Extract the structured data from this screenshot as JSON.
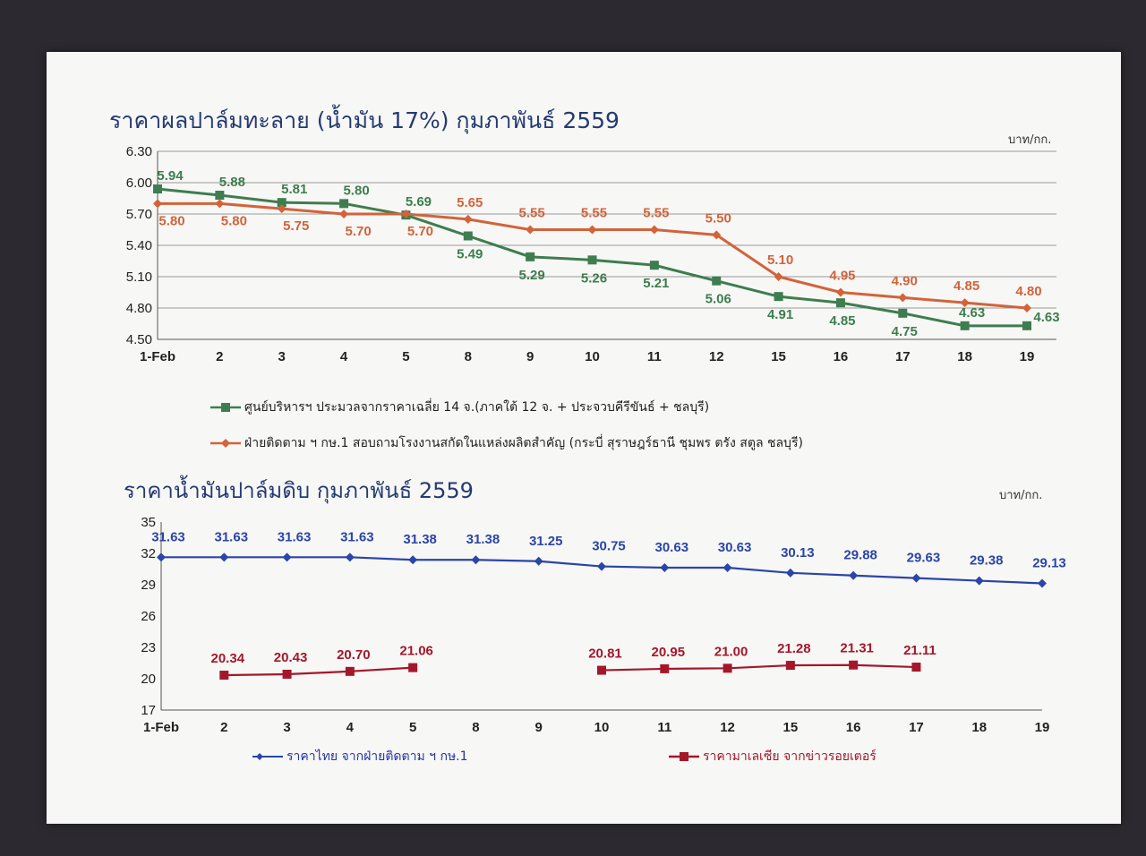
{
  "chart_data": [
    {
      "type": "line",
      "title": "ราคาผลปาล์มทะลาย (น้ำมัน 17%) กุมภาพันธ์ 2559",
      "unit": "บาท/กก.",
      "categories": [
        "1-Feb",
        "2",
        "3",
        "4",
        "5",
        "8",
        "9",
        "10",
        "11",
        "12",
        "15",
        "16",
        "17",
        "18",
        "19"
      ],
      "ylim": [
        4.5,
        6.3
      ],
      "yticks": [
        "4.50",
        "4.80",
        "5.10",
        "5.40",
        "5.70",
        "6.00",
        "6.30"
      ],
      "grid": true,
      "legend_position": "bottom",
      "series": [
        {
          "name": "ศูนย์บริหารฯ ประมวลจากราคาเฉลี่ย 14 จ.(ภาคใต้ 12 จ. + ประจวบคีรีขันธ์ + ชลบุรี)",
          "color": "#3e7d4f",
          "marker": "square",
          "values": [
            5.94,
            5.88,
            5.81,
            5.8,
            5.69,
            5.49,
            5.29,
            5.26,
            5.21,
            5.06,
            4.91,
            4.85,
            4.75,
            4.63,
            4.63
          ],
          "labels": [
            "5.94",
            "5.88",
            "5.81",
            "5.80",
            "5.69",
            "5.49",
            "5.29",
            "5.26",
            "5.21",
            "5.06",
            "4.91",
            "4.85",
            "4.75",
            "4.63",
            "4.63"
          ]
        },
        {
          "name": "ฝ่ายติดตาม ฯ กษ.1 สอบถามโรงงานสกัดในแหล่งผลิตสำคัญ (กระบี่ สุราษฎร์ธานี ชุมพร ตรัง สตูล ชลบุรี)",
          "color": "#d2633b",
          "marker": "diamond",
          "values": [
            5.8,
            5.8,
            5.75,
            5.7,
            5.7,
            5.65,
            5.55,
            5.55,
            5.55,
            5.5,
            5.1,
            4.95,
            4.9,
            4.85,
            4.8
          ],
          "labels": [
            "5.80",
            "5.80",
            "5.75",
            "5.70",
            "5.70",
            "5.65",
            "5.55",
            "5.55",
            "5.55",
            "5.50",
            "5.10",
            "4.95",
            "4.90",
            "4.85",
            "4.80"
          ]
        }
      ]
    },
    {
      "type": "line",
      "title": "ราคาน้ำมันปาล์มดิบ  กุมภาพันธ์ 2559",
      "unit": "บาท/กก.",
      "categories": [
        "1-Feb",
        "2",
        "3",
        "4",
        "5",
        "8",
        "9",
        "10",
        "11",
        "12",
        "15",
        "16",
        "17",
        "18",
        "19"
      ],
      "ylim": [
        17,
        35
      ],
      "yticks": [
        "17",
        "20",
        "23",
        "26",
        "29",
        "32",
        "35"
      ],
      "grid": false,
      "legend_position": "bottom",
      "series": [
        {
          "name": "ราคาไทย  จากฝ่ายติดตาม ฯ กษ.1",
          "color": "#2b45a8",
          "marker": "diamond",
          "values": [
            31.63,
            31.63,
            31.63,
            31.63,
            31.38,
            31.38,
            31.25,
            30.75,
            30.63,
            30.63,
            30.13,
            29.88,
            29.63,
            29.38,
            29.13
          ],
          "labels": [
            "31.63",
            "31.63",
            "31.63",
            "31.63",
            "31.38",
            "31.38",
            "31.25",
            "30.75",
            "30.63",
            "30.63",
            "30.13",
            "29.88",
            "29.63",
            "29.38",
            "29.13"
          ]
        },
        {
          "name": "ราคามาเลเซีย จากข่าวรอยเตอร์",
          "color": "#a4172b",
          "marker": "square",
          "values": [
            null,
            20.34,
            20.43,
            20.7,
            21.06,
            null,
            null,
            20.81,
            20.95,
            21.0,
            21.28,
            21.31,
            21.11,
            null,
            null
          ],
          "labels": [
            null,
            "20.34",
            "20.43",
            "20.70",
            "21.06",
            null,
            null,
            "20.81",
            "20.95",
            "21.00",
            "21.28",
            "21.31",
            "21.11",
            null,
            null
          ]
        }
      ]
    }
  ]
}
